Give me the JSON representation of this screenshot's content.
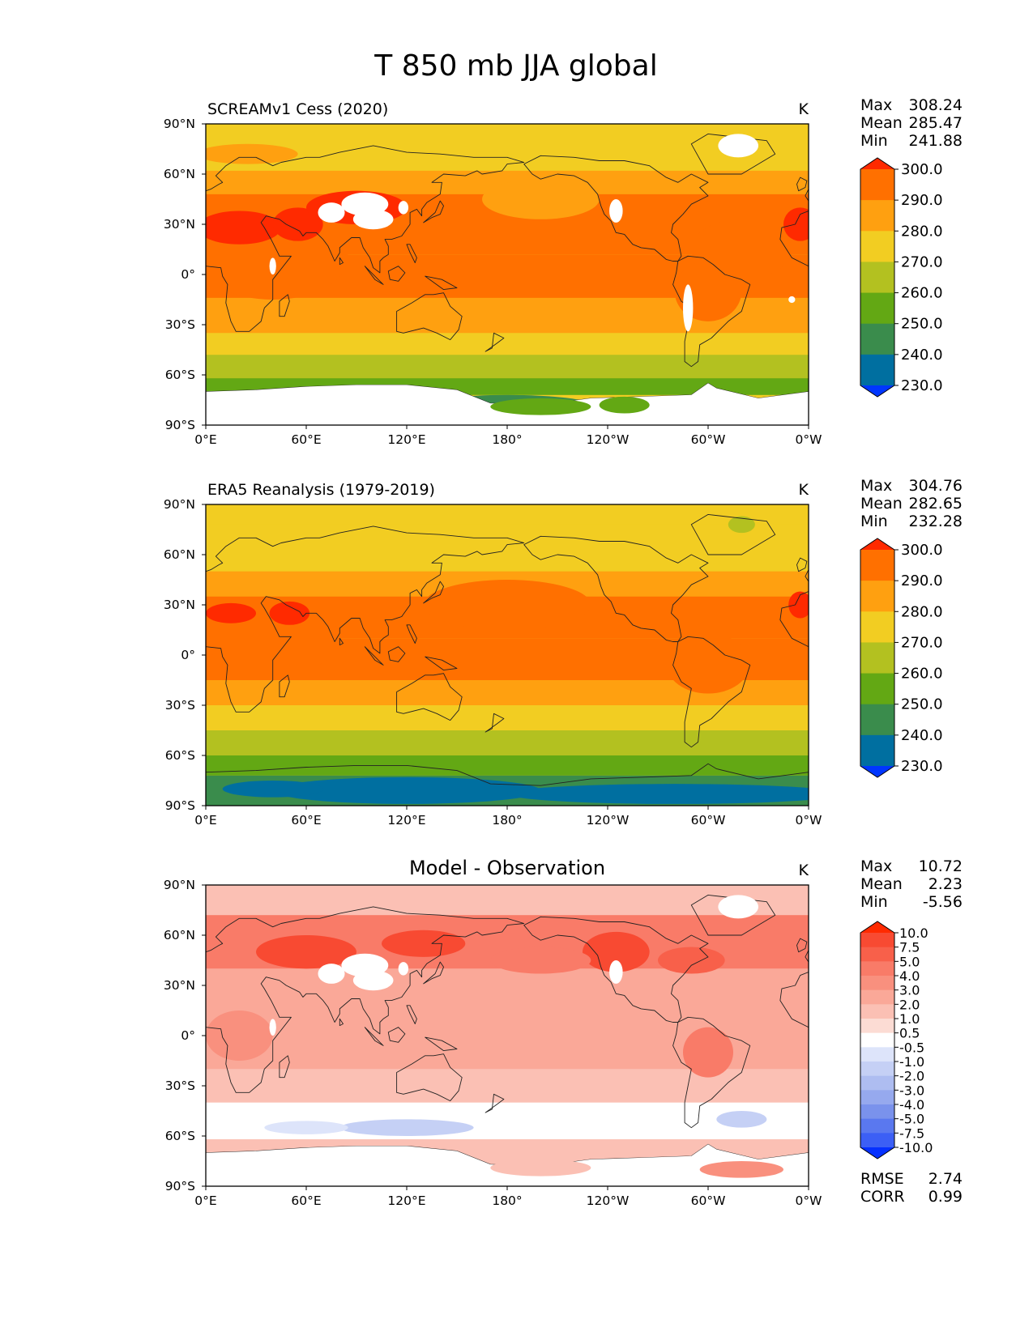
{
  "figure": {
    "title": "T 850 mb JJA global"
  },
  "axes": {
    "lat_ticks": [
      "90°N",
      "60°N",
      "30°N",
      "0°",
      "30°S",
      "60°S",
      "90°S"
    ],
    "lon_ticks": [
      "0°E",
      "60°E",
      "120°E",
      "180°",
      "120°W",
      "60°W",
      "0°W"
    ]
  },
  "panels": [
    {
      "id": "model",
      "title": "SCREAMv1 Cess (2020)",
      "units": "K",
      "stats": {
        "labels": [
          "Max",
          "Mean",
          "Min"
        ],
        "values": [
          "308.24",
          "285.47",
          "241.88"
        ]
      }
    },
    {
      "id": "obs",
      "title": "ERA5 Reanalysis (1979-2019)",
      "units": "K",
      "stats": {
        "labels": [
          "Max",
          "Mean",
          "Min"
        ],
        "values": [
          "304.76",
          "282.65",
          "232.28"
        ]
      }
    },
    {
      "id": "diff",
      "title": "Model - Observation",
      "units": "K",
      "stats": {
        "labels": [
          "Max",
          "Mean",
          "Min"
        ],
        "values": [
          "10.72",
          "2.23",
          "-5.56"
        ]
      },
      "metrics": {
        "labels": [
          "RMSE",
          "CORR"
        ],
        "values": [
          "2.74",
          "0.99"
        ]
      }
    }
  ],
  "colorbars": {
    "temperature": {
      "levels": [
        "300.0",
        "290.0",
        "280.0",
        "270.0",
        "260.0",
        "250.0",
        "240.0",
        "230.0"
      ],
      "colors": [
        "#ff2a00",
        "#ff7000",
        "#ffa010",
        "#f2cd22",
        "#b3c120",
        "#63a814",
        "#3a8c4c",
        "#006fa0",
        "#0036ff"
      ]
    },
    "difference": {
      "levels": [
        "10.0",
        "7.5",
        "5.0",
        "4.0",
        "3.0",
        "2.0",
        "1.0",
        "0.5",
        "-0.5",
        "-1.0",
        "-2.0",
        "-3.0",
        "-4.0",
        "-5.0",
        "-7.5",
        "-10.0"
      ],
      "colors": [
        "#ff2a00",
        "#f84a32",
        "#f8604a",
        "#f97b68",
        "#f9907e",
        "#faa898",
        "#fbc0b4",
        "#fcdcd4",
        "#ffffff",
        "#dde4fa",
        "#c5d0f5",
        "#aebdf1",
        "#96a9ee",
        "#7a92ec",
        "#5a78ef",
        "#3c5ff5",
        "#0530ff"
      ]
    }
  },
  "chart_data": [
    {
      "type": "heatmap",
      "title": "SCREAMv1 Cess (2020)",
      "variable": "T 850 mb JJA global",
      "units": "K",
      "xlim": [
        0,
        360
      ],
      "ylim": [
        -90,
        90
      ],
      "stats": {
        "max": 308.24,
        "mean": 285.47,
        "min": 241.88
      },
      "levels": [
        230,
        240,
        250,
        260,
        270,
        280,
        290,
        300
      ],
      "zonal_bands": [
        {
          "lat_from": 90,
          "lat_to": 75,
          "value": 275
        },
        {
          "lat_from": 75,
          "lat_to": 62,
          "value": 275
        },
        {
          "lat_from": 62,
          "lat_to": 48,
          "value": 285
        },
        {
          "lat_from": 48,
          "lat_to": 12,
          "value": 295
        },
        {
          "lat_from": 12,
          "lat_to": -14,
          "value": 292
        },
        {
          "lat_from": -14,
          "lat_to": -35,
          "value": 285
        },
        {
          "lat_from": -35,
          "lat_to": -48,
          "value": 275
        },
        {
          "lat_from": -48,
          "lat_to": -62,
          "value": 265
        },
        {
          "lat_from": -62,
          "lat_to": -72,
          "value": 255
        }
      ]
    },
    {
      "type": "heatmap",
      "title": "ERA5 Reanalysis (1979-2019)",
      "variable": "T 850 mb JJA global",
      "units": "K",
      "xlim": [
        0,
        360
      ],
      "ylim": [
        -90,
        90
      ],
      "stats": {
        "max": 304.76,
        "mean": 282.65,
        "min": 232.28
      },
      "levels": [
        230,
        240,
        250,
        260,
        270,
        280,
        290,
        300
      ],
      "zonal_bands": [
        {
          "lat_from": 90,
          "lat_to": 78,
          "value": 275
        },
        {
          "lat_from": 78,
          "lat_to": 50,
          "value": 275
        },
        {
          "lat_from": 50,
          "lat_to": 35,
          "value": 285
        },
        {
          "lat_from": 35,
          "lat_to": 10,
          "value": 295
        },
        {
          "lat_from": 10,
          "lat_to": -15,
          "value": 292
        },
        {
          "lat_from": -15,
          "lat_to": -30,
          "value": 285
        },
        {
          "lat_from": -30,
          "lat_to": -45,
          "value": 275
        },
        {
          "lat_from": -45,
          "lat_to": -60,
          "value": 265
        },
        {
          "lat_from": -60,
          "lat_to": -72,
          "value": 255
        },
        {
          "lat_from": -72,
          "lat_to": -90,
          "value": 245
        }
      ]
    },
    {
      "type": "heatmap",
      "title": "Model - Observation",
      "variable": "T 850 mb JJA global",
      "units": "K",
      "xlim": [
        0,
        360
      ],
      "ylim": [
        -90,
        90
      ],
      "stats": {
        "max": 10.72,
        "mean": 2.23,
        "min": -5.56
      },
      "rmse": 2.74,
      "corr": 0.99,
      "levels": [
        -10,
        -7.5,
        -5,
        -4,
        -3,
        -2,
        -1,
        -0.5,
        0.5,
        1,
        2,
        3,
        4,
        5,
        7.5,
        10
      ],
      "zonal_bands": [
        {
          "lat_from": 90,
          "lat_to": 72,
          "value": 1.5
        },
        {
          "lat_from": 72,
          "lat_to": 40,
          "value": 4.5
        },
        {
          "lat_from": 40,
          "lat_to": 15,
          "value": 2.5
        },
        {
          "lat_from": 15,
          "lat_to": -20,
          "value": 2.0
        },
        {
          "lat_from": -20,
          "lat_to": -40,
          "value": 1.5
        },
        {
          "lat_from": -40,
          "lat_to": -62,
          "value": 0.0
        },
        {
          "lat_from": -62,
          "lat_to": -72,
          "value": 1.0
        }
      ]
    }
  ]
}
